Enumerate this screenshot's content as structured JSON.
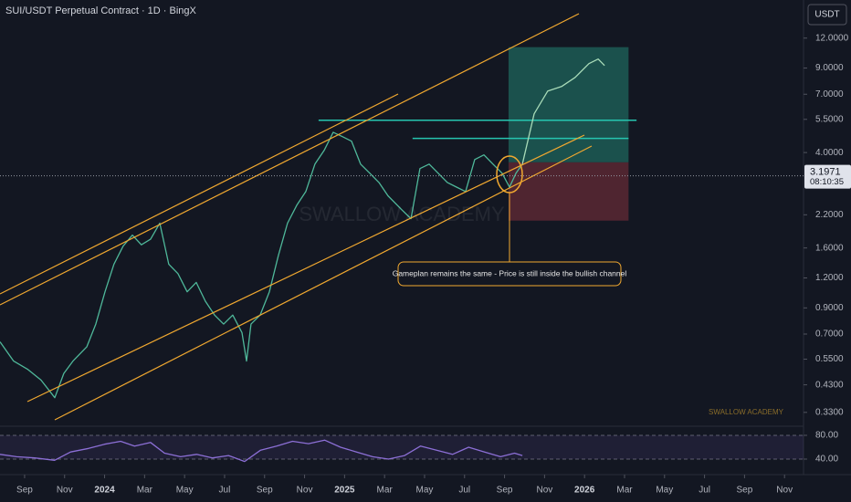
{
  "chart_data": [
    {
      "type": "line",
      "title": "SUI/USDT Perpetual Contract · 1D · BingX",
      "currency": "USDT",
      "watermark": "SWALLOW ACADEMY",
      "annotation": "Gameplan remains the same - Price is still inside the bullish channel",
      "last_price": 3.1971,
      "countdown": "08:10:35",
      "yscale": "log",
      "grid": false,
      "xlim": [
        -1.23,
        38.95
      ],
      "xticks": [
        {
          "value": 0,
          "label": "Sep"
        },
        {
          "value": 2,
          "label": "Nov"
        },
        {
          "value": 4,
          "label": "2024"
        },
        {
          "value": 6,
          "label": "Mar"
        },
        {
          "value": 8,
          "label": "May"
        },
        {
          "value": 10,
          "label": "Jul"
        },
        {
          "value": 12,
          "label": "Sep"
        },
        {
          "value": 14,
          "label": "Nov"
        },
        {
          "value": 16,
          "label": "2025"
        },
        {
          "value": 18,
          "label": "Mar"
        },
        {
          "value": 20,
          "label": "May"
        },
        {
          "value": 22,
          "label": "Jul"
        },
        {
          "value": 24,
          "label": "Sep"
        },
        {
          "value": 26,
          "label": "Nov"
        },
        {
          "value": 28,
          "label": "2026"
        },
        {
          "value": 30,
          "label": "Mar"
        },
        {
          "value": 32,
          "label": "May"
        },
        {
          "value": 34,
          "label": "Jul"
        },
        {
          "value": 36,
          "label": "Sep"
        },
        {
          "value": 38,
          "label": "Nov"
        }
      ],
      "ylim": [
        0.294,
        17.3
      ],
      "yticks": [
        {
          "value": 12,
          "label": "12.0000"
        },
        {
          "value": 9,
          "label": "9.0000"
        },
        {
          "value": 7,
          "label": "7.0000"
        },
        {
          "value": 5.5,
          "label": "5.5000"
        },
        {
          "value": 4,
          "label": "4.0000"
        },
        {
          "value": 2.2,
          "label": "2.2000"
        },
        {
          "value": 1.6,
          "label": "1.6000"
        },
        {
          "value": 1.2,
          "label": "1.2000"
        },
        {
          "value": 0.9,
          "label": "0.9000"
        },
        {
          "value": 0.7,
          "label": "0.7000"
        },
        {
          "value": 0.55,
          "label": "0.5500"
        },
        {
          "value": 0.43,
          "label": "0.4300"
        },
        {
          "value": 0.33,
          "label": "0.3300"
        }
      ],
      "zones": [
        {
          "color": "#1d5c55",
          "x": [
            24.2,
            30.2
          ],
          "values": [
            3.64,
            11.0
          ]
        },
        {
          "color": "#5a2833",
          "x": [
            24.2,
            30.2
          ],
          "values": [
            2.08,
            3.64
          ]
        }
      ],
      "levels": [
        {
          "color": "#26c6b0",
          "x": [
            14.7,
            30.6
          ],
          "value": 5.45
        },
        {
          "color": "#26c6b0",
          "x": [
            19.4,
            30.2
          ],
          "value": 4.58
        }
      ],
      "series": [
        {
          "color": "#4fb89a",
          "x": [
            -1.23,
            -0.55,
            0.14,
            0.82,
            1.51,
            1.96,
            2.42,
            3.11,
            3.56,
            4.02,
            4.47,
            4.93,
            5.39,
            5.84,
            6.3,
            6.76,
            7.21,
            7.67,
            8.13,
            8.58,
            9.04,
            9.5,
            9.95,
            10.41,
            10.87,
            11.1,
            11.32,
            11.78,
            12.24,
            12.69,
            13.15,
            13.61,
            14.06,
            14.52,
            14.98,
            15.43,
            15.89,
            16.35,
            16.8,
            17.26,
            17.72,
            18.17,
            18.86,
            19.32,
            19.77,
            20.23,
            20.68,
            21.14,
            21.6,
            22.05,
            22.51,
            22.97,
            23.42,
            23.88,
            24.25,
            24.57,
            24.89
          ],
          "values": [
            0.65,
            0.54,
            0.5,
            0.45,
            0.38,
            0.48,
            0.54,
            0.62,
            0.77,
            1.05,
            1.37,
            1.63,
            1.81,
            1.65,
            1.74,
            2.03,
            1.37,
            1.25,
            1.05,
            1.15,
            0.96,
            0.84,
            0.77,
            0.84,
            0.71,
            0.54,
            0.77,
            0.84,
            1.05,
            1.49,
            2.03,
            2.41,
            2.75,
            3.58,
            4.08,
            4.86,
            4.66,
            4.46,
            3.58,
            3.28,
            3.0,
            2.64,
            2.31,
            2.12,
            3.43,
            3.58,
            3.28,
            3.0,
            2.87,
            2.75,
            3.74,
            3.91,
            3.58,
            3.28,
            2.87,
            3.28,
            3.58
          ]
        },
        {
          "color": "#a8dbb8",
          "x": [
            24.89,
            25.48,
            26.16,
            26.85,
            27.53,
            28.22,
            28.68,
            29.0
          ],
          "values": [
            3.58,
            5.8,
            7.22,
            7.54,
            8.23,
            9.39,
            9.81,
            9.22
          ]
        }
      ]
    },
    {
      "type": "line",
      "xlim": [
        -1.23,
        38.95
      ],
      "ylim": [
        24.6,
        93.8
      ],
      "yticks": [
        {
          "value": 80,
          "label": "80.00"
        },
        {
          "value": 40,
          "label": "40.00"
        }
      ],
      "series": [
        {
          "color": "#8c6fd6",
          "x": [
            -1.23,
            -0.4,
            0.5,
            1.5,
            2.3,
            3.2,
            4.0,
            4.8,
            5.5,
            6.3,
            7.0,
            7.8,
            8.6,
            9.4,
            10.2,
            11.0,
            11.8,
            12.6,
            13.4,
            14.2,
            15.0,
            15.8,
            16.6,
            17.4,
            18.2,
            19.0,
            19.8,
            20.6,
            21.4,
            22.2,
            23.0,
            23.8,
            24.5,
            24.89
          ],
          "values": [
            48,
            44,
            42,
            38,
            52,
            58,
            65,
            70,
            62,
            68,
            50,
            44,
            48,
            42,
            46,
            36,
            55,
            62,
            70,
            66,
            72,
            60,
            52,
            44,
            40,
            46,
            62,
            55,
            48,
            60,
            52,
            44,
            50,
            46
          ]
        }
      ]
    }
  ]
}
